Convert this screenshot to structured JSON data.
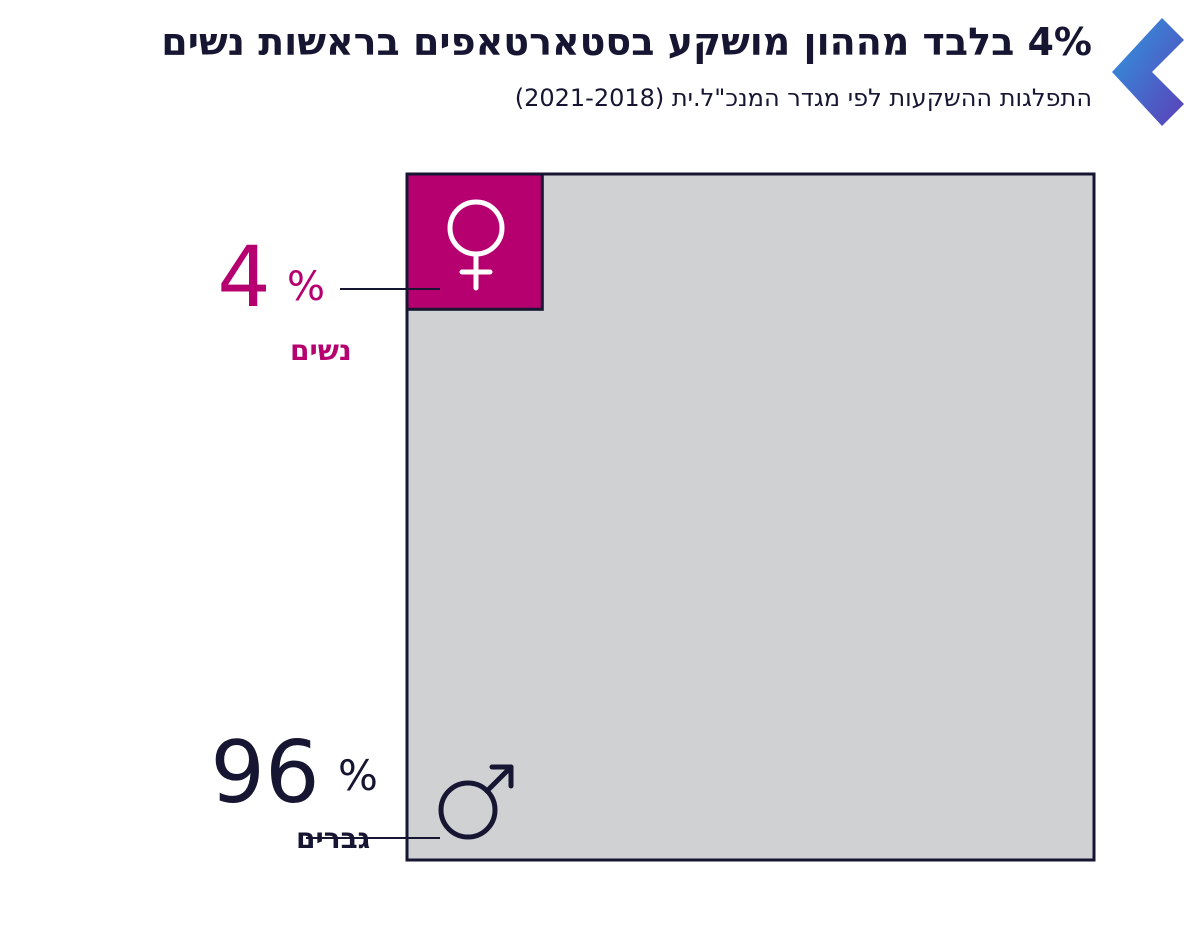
{
  "header": {
    "title": "4% בלבד מההון מושקע בסטארטאפים בראשות נשים",
    "subtitle": "התפלגות ההשקעות לפי מגדר המנכ\"ל.ית (2021-2018)"
  },
  "chart_data": {
    "type": "area",
    "categories": [
      "נשים",
      "גברים"
    ],
    "values": [
      4,
      96
    ],
    "value_labels": [
      "4",
      "96"
    ],
    "unit": "%",
    "icons": [
      "female-symbol-icon",
      "male-symbol-icon"
    ],
    "colors": {
      "women": "#b7006f",
      "men": "#d0d1d3",
      "border": "#161633",
      "text": "#161633"
    }
  },
  "decor": {
    "chevron_colors": [
      "#3a8fd6",
      "#5b3fb8"
    ]
  }
}
